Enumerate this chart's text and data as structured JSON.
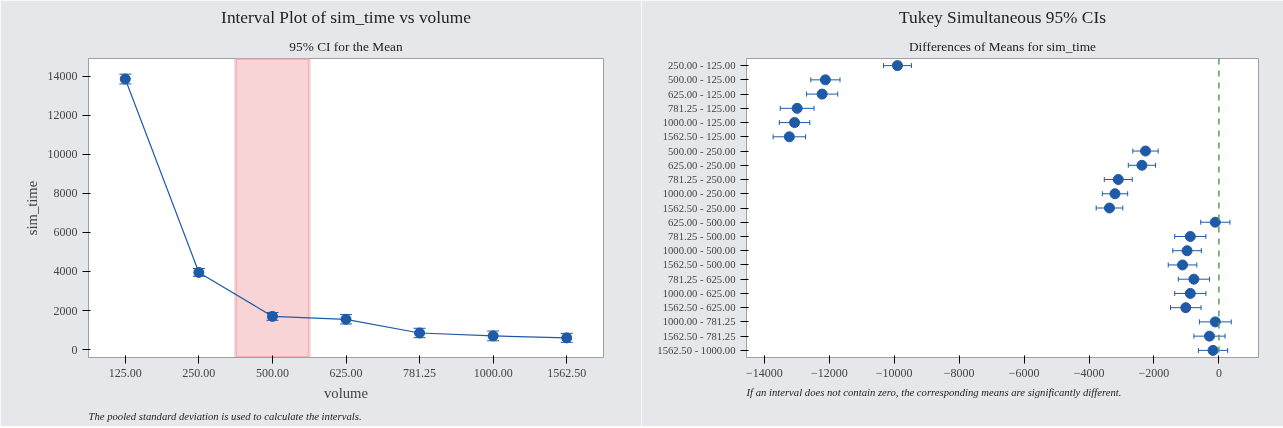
{
  "chart_data": [
    {
      "type": "line",
      "title": "Interval Plot of sim_time vs volume",
      "subtitle": "95% CI for the Mean",
      "xlabel": "volume",
      "ylabel": "sim_time",
      "categories": [
        "125.00",
        "250.00",
        "500.00",
        "625.00",
        "781.25",
        "1000.00",
        "1562.50"
      ],
      "series": [
        {
          "color": "#1f5aa6",
          "values": [
            13850,
            3950,
            1700,
            1550,
            850,
            700,
            600
          ],
          "errors": [
            250,
            200,
            200,
            240,
            240,
            250,
            230
          ]
        }
      ],
      "marker": "circle",
      "line_style": "solid",
      "grid": false,
      "ylim": [
        -405,
        14900
      ],
      "yticks": [
        0,
        2000,
        4000,
        6000,
        8000,
        10000,
        12000,
        14000
      ],
      "bands": [
        {
          "axis": "x",
          "from": "500.00",
          "to": "500.00",
          "color": "#f9d4d6"
        }
      ],
      "annotations": [
        "The pooled standard deviation is used to calculate the intervals."
      ]
    },
    {
      "type": "scatter",
      "orientation": "horizontal",
      "title": "Tukey Simultaneous 95% CIs",
      "subtitle": "Differences of Means for sim_time",
      "categories": [
        "250.00 - 125.00",
        "500.00 - 125.00",
        "625.00 - 125.00",
        "781.25 - 125.00",
        "1000.00 - 125.00",
        "1562.50 - 125.00",
        "500.00 - 250.00",
        "625.00 - 250.00",
        "781.25 - 250.00",
        "1000.00 - 250.00",
        "1562.50 - 250.00",
        "625.00 - 500.00",
        "781.25 - 500.00",
        "1000.00 - 500.00",
        "1562.50 - 500.00",
        "781.25 - 625.00",
        "1000.00 - 625.00",
        "1562.50 - 625.00",
        "1000.00 - 781.25",
        "1562.50 - 781.25",
        "1562.50 - 1000.00"
      ],
      "series": [
        {
          "color": "#1f5aa6",
          "values": [
            -9900,
            -12120,
            -12220,
            -12990,
            -13070,
            -13230,
            -2260,
            -2370,
            -3100,
            -3200,
            -3370,
            -110,
            -880,
            -980,
            -1120,
            -770,
            -880,
            -1020,
            -110,
            -290,
            -180
          ],
          "errors": [
            430,
            450,
            480,
            520,
            470,
            500,
            390,
            420,
            430,
            390,
            410,
            450,
            480,
            440,
            440,
            480,
            480,
            470,
            490,
            480,
            450
          ]
        }
      ],
      "marker": "circle",
      "grid": false,
      "xlim": [
        -14550,
        1220
      ],
      "xticks": [
        -14000,
        -12000,
        -10000,
        -8000,
        -6000,
        -4000,
        -2000,
        0
      ],
      "ref_lines": [
        {
          "axis": "x",
          "value": 0,
          "color": "#5aa05a",
          "line_style": "dashed"
        }
      ],
      "annotations": [
        "If an interval does not contain zero, the corresponding means are significantly different."
      ]
    }
  ]
}
